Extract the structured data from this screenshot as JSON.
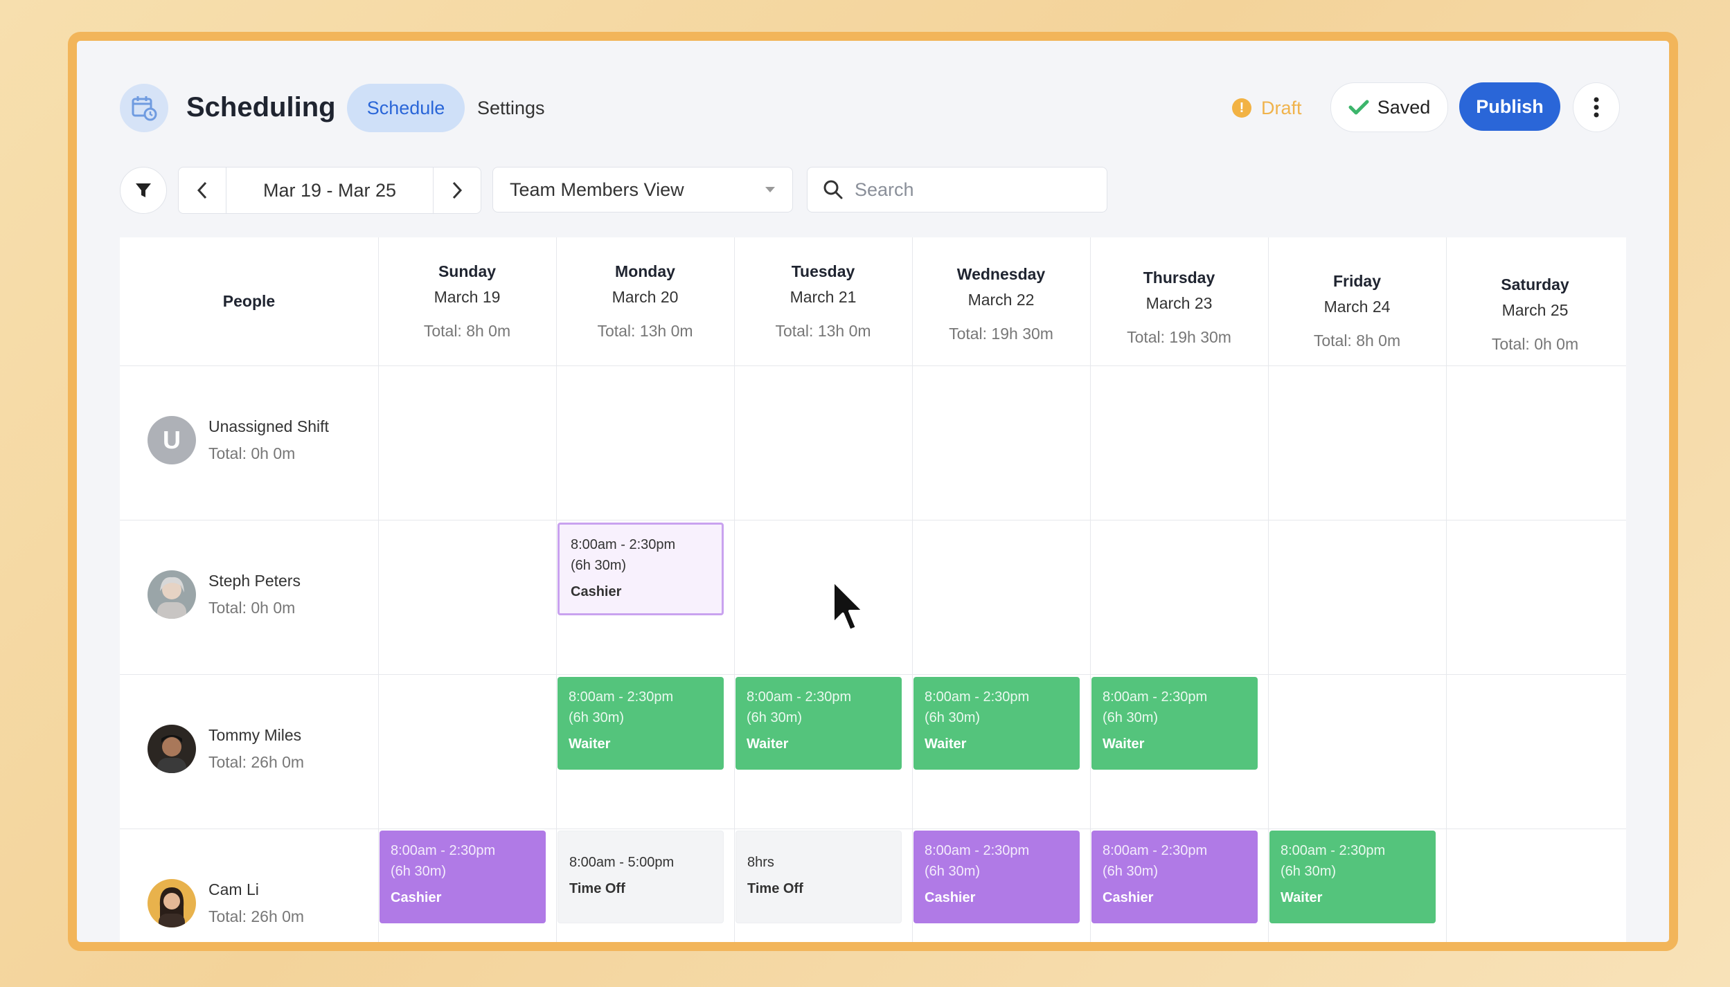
{
  "header": {
    "title": "Scheduling",
    "tabs": [
      {
        "label": "Schedule",
        "active": true
      },
      {
        "label": "Settings",
        "active": false
      }
    ],
    "status": "Draft",
    "saved_label": "Saved",
    "publish_label": "Publish"
  },
  "toolbar": {
    "date_range": "Mar 19 - Mar 25",
    "view": "Team Members View",
    "search_placeholder": "Search"
  },
  "grid": {
    "people_header": "People",
    "days": [
      {
        "name": "Sunday",
        "date": "March 19",
        "total": "Total: 8h 0m"
      },
      {
        "name": "Monday",
        "date": "March 20",
        "total": "Total: 13h 0m"
      },
      {
        "name": "Tuesday",
        "date": "March 21",
        "total": "Total: 13h 0m"
      },
      {
        "name": "Wednesday",
        "date": "March 22",
        "total": "Total: 19h 30m"
      },
      {
        "name": "Thursday",
        "date": "March 23",
        "total": "Total: 19h 30m"
      },
      {
        "name": "Friday",
        "date": "March 24",
        "total": "Total: 8h 0m"
      },
      {
        "name": "Saturday",
        "date": "March 25",
        "total": "Total: 0h 0m"
      }
    ],
    "people": [
      {
        "name": "Unassigned Shift",
        "total": "Total: 0h 0m",
        "avatar_letter": "U"
      },
      {
        "name": "Steph Peters",
        "total": "Total: 0h 0m"
      },
      {
        "name": "Tommy Miles",
        "total": "Total: 26h 0m"
      },
      {
        "name": "Cam Li",
        "total": "Total: 26h 0m"
      }
    ],
    "shifts": [
      {
        "person": "Steph Peters",
        "day": "Monday",
        "time": "8:00am - 2:30pm",
        "duration": "(6h 30m)",
        "role": "Cashier",
        "style": "outline"
      },
      {
        "person": "Tommy Miles",
        "day": "Monday",
        "time": "8:00am - 2:30pm",
        "duration": "(6h 30m)",
        "role": "Waiter",
        "style": "green"
      },
      {
        "person": "Tommy Miles",
        "day": "Tuesday",
        "time": "8:00am - 2:30pm",
        "duration": "(6h 30m)",
        "role": "Waiter",
        "style": "green"
      },
      {
        "person": "Tommy Miles",
        "day": "Wednesday",
        "time": "8:00am - 2:30pm",
        "duration": "(6h 30m)",
        "role": "Waiter",
        "style": "green"
      },
      {
        "person": "Tommy Miles",
        "day": "Thursday",
        "time": "8:00am - 2:30pm",
        "duration": "(6h 30m)",
        "role": "Waiter",
        "style": "green"
      },
      {
        "person": "Cam Li",
        "day": "Sunday",
        "time": "8:00am - 2:30pm",
        "duration": "(6h 30m)",
        "role": "Cashier",
        "style": "purple"
      },
      {
        "person": "Cam Li",
        "day": "Monday",
        "time": "8:00am - 5:00pm",
        "duration": "",
        "role": "Time Off",
        "style": "timeoff"
      },
      {
        "person": "Cam Li",
        "day": "Tuesday",
        "time": "8hrs",
        "duration": "",
        "role": "Time Off",
        "style": "timeoff"
      },
      {
        "person": "Cam Li",
        "day": "Wednesday",
        "time": "8:00am - 2:30pm",
        "duration": "(6h 30m)",
        "role": "Cashier",
        "style": "purple"
      },
      {
        "person": "Cam Li",
        "day": "Thursday",
        "time": "8:00am - 2:30pm",
        "duration": "(6h 30m)",
        "role": "Cashier",
        "style": "purple"
      },
      {
        "person": "Cam Li",
        "day": "Friday",
        "time": "8:00am - 2:30pm",
        "duration": "(6h 30m)",
        "role": "Waiter",
        "style": "green"
      }
    ]
  },
  "colors": {
    "accent": "#2a66d8",
    "frame": "#f2b55a",
    "waiter": "#54c47c",
    "cashier": "#b07ae6",
    "draft": "#f0b34c"
  },
  "icons": {
    "app": "calendar-clock-icon",
    "filter": "filter-icon",
    "search": "search-icon",
    "saved": "check-icon",
    "more": "more-vertical-icon",
    "draft": "alert-icon"
  }
}
